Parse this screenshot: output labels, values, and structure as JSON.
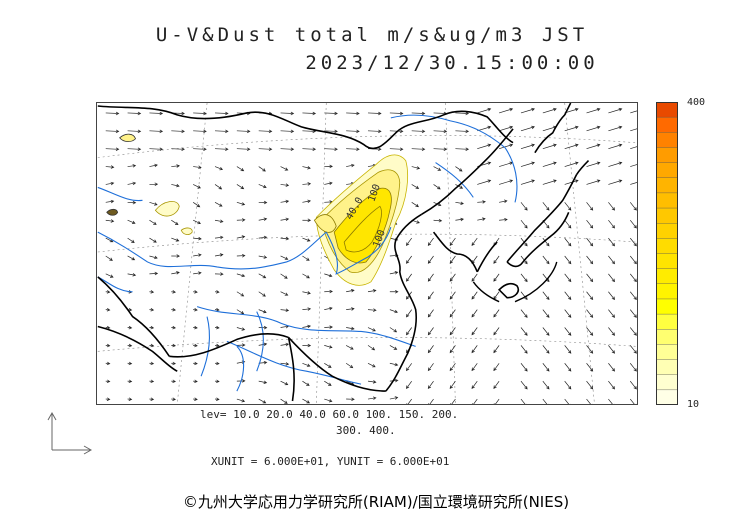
{
  "title": {
    "line1": "U-V&Dust total m/s&ug/m3 JST",
    "line2": "2023/12/30.15:00:00"
  },
  "colorbar": {
    "max_label": "400",
    "min_label": "10",
    "colors": [
      "#ff9c00",
      "#ffa800",
      "#ffb400",
      "#ffbe00",
      "#ffc800",
      "#ffd200",
      "#ffdc00",
      "#ffe400",
      "#ffec00",
      "#fff400",
      "#ffff00",
      "#ffff40",
      "#ffff70",
      "#ffff96",
      "#ffffb4",
      "#ffffd0",
      "#ffffe6"
    ],
    "top_colors": [
      "#e84a00",
      "#ff6a00",
      "#ff8200"
    ]
  },
  "legend": {
    "levels_line1": "lev= 10.0 20.0 40.0 60.0 100. 150. 200.",
    "levels_line2": "300. 400.",
    "units": "XUNIT = 6.000E+01, YUNIT = 6.000E+01"
  },
  "map": {
    "contour_labels": [
      "40.0",
      "100",
      "100"
    ],
    "colors": {
      "coast": "#000000",
      "river": "#1e6fd9",
      "wind": "#222222",
      "dust_light": "#fffcc8",
      "dust_mid": "#fff28a",
      "dust_high": "#ffe600"
    }
  },
  "copyright": "©九州大学応用力学研究所(RIAM)/国立環境研究所(NIES)"
}
